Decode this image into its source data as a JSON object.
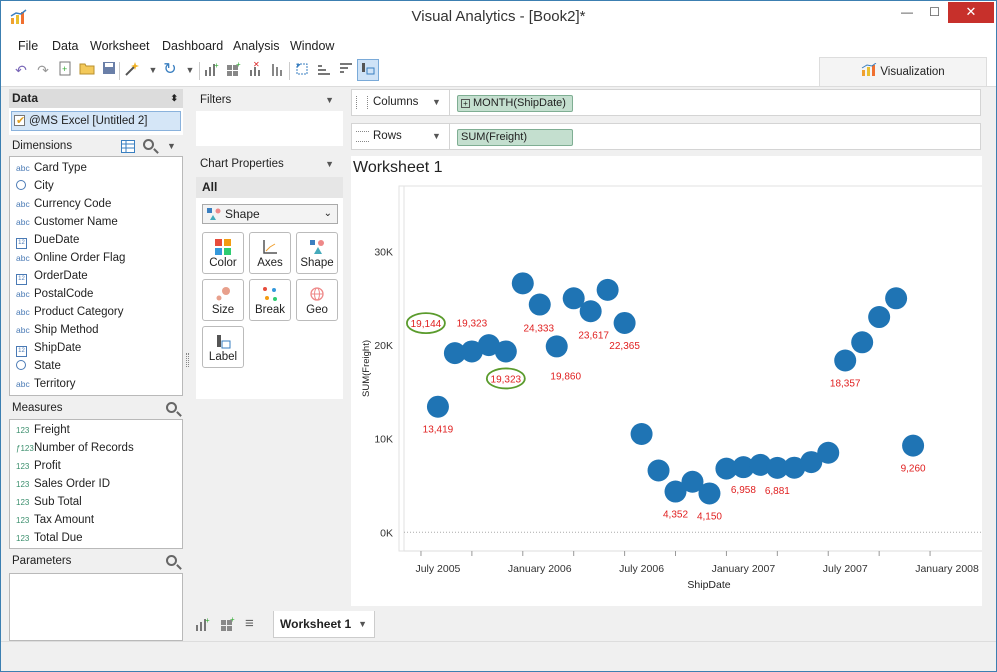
{
  "window": {
    "title": "Visual Analytics - [Book2]*",
    "min": "—",
    "max": "☐",
    "close": "✕"
  },
  "menu": [
    "File",
    "Data",
    "Worksheet",
    "Dashboard",
    "Analysis",
    "Window"
  ],
  "toolbar": {
    "visualization_tab": "Visualization"
  },
  "data_pane": {
    "title": "Data",
    "source": "@MS Excel [Untitled 2]"
  },
  "dimensions": {
    "title": "Dimensions",
    "items": [
      {
        "label": "Card Type",
        "icon": "abc"
      },
      {
        "label": "City",
        "icon": "globe-icon"
      },
      {
        "label": "Currency Code",
        "icon": "abc"
      },
      {
        "label": "Customer Name",
        "icon": "abc"
      },
      {
        "label": "DueDate",
        "icon": "calendar-icon"
      },
      {
        "label": "Online Order Flag",
        "icon": "abc"
      },
      {
        "label": "OrderDate",
        "icon": "calendar-icon"
      },
      {
        "label": "PostalCode",
        "icon": "abc"
      },
      {
        "label": "Product Category",
        "icon": "abc"
      },
      {
        "label": "Ship Method",
        "icon": "abc"
      },
      {
        "label": "ShipDate",
        "icon": "calendar-icon"
      },
      {
        "label": "State",
        "icon": "globe-icon"
      },
      {
        "label": "Territory",
        "icon": "abc"
      }
    ]
  },
  "measures": {
    "title": "Measures",
    "items": [
      {
        "label": "Freight",
        "icon": "123"
      },
      {
        "label": "Number of Records",
        "icon": "fx123"
      },
      {
        "label": "Profit",
        "icon": "123"
      },
      {
        "label": "Sales Order ID",
        "icon": "123"
      },
      {
        "label": "Sub Total",
        "icon": "123"
      },
      {
        "label": "Tax Amount",
        "icon": "123"
      },
      {
        "label": "Total Due",
        "icon": "123"
      }
    ]
  },
  "parameters": {
    "title": "Parameters"
  },
  "filters": {
    "title": "Filters"
  },
  "chart_properties": {
    "title": "Chart Properties",
    "all_tab": "All",
    "mark_type": "Shape",
    "tiles": [
      "Color",
      "Axes",
      "Shape",
      "Size",
      "Break",
      "Geo",
      "Label"
    ]
  },
  "shelves": {
    "columns_label": "Columns",
    "columns_pill": "MONTH(ShipDate)",
    "rows_label": "Rows",
    "rows_pill": "SUM(Freight)"
  },
  "worksheet": {
    "title": "Worksheet 1",
    "tab": "Worksheet 1"
  },
  "chart_data": {
    "type": "scatter",
    "xlabel": "ShipDate",
    "ylabel": "SUM(Freight)",
    "x_ticks": [
      "July 2005",
      "January 2006",
      "July 2006",
      "January 2007",
      "July 2007",
      "January 2008"
    ],
    "y_ticks": [
      "0K",
      "10K",
      "20K",
      "30K"
    ],
    "ylim": [
      -2000,
      37000
    ],
    "grid": false,
    "series": [
      {
        "x": [
          "2005-07",
          "2005-08",
          "2005-09",
          "2005-10",
          "2005-11",
          "2005-12",
          "2006-01",
          "2006-02",
          "2006-03",
          "2006-04",
          "2006-05",
          "2006-06",
          "2006-07",
          "2006-08",
          "2006-09",
          "2006-10",
          "2006-11",
          "2006-12",
          "2007-01",
          "2007-02",
          "2007-03",
          "2007-04",
          "2007-05",
          "2007-06",
          "2007-07",
          "2007-08",
          "2007-09",
          "2007-10",
          "2007-11"
        ],
        "y": [
          13419,
          19144,
          19323,
          20000,
          19323,
          26600,
          24333,
          19860,
          25000,
          23617,
          25900,
          22365,
          10500,
          6600,
          4352,
          5400,
          4150,
          6800,
          6958,
          7200,
          6881,
          6900,
          7500,
          8500,
          18357,
          20300,
          23000,
          25000,
          9260
        ]
      }
    ],
    "data_labels": [
      {
        "x": "2005-07",
        "text": "13,419",
        "pos": "below"
      },
      {
        "x": "2005-08",
        "text": "19,144",
        "pos": "left",
        "circled": true
      },
      {
        "x": "2005-09",
        "text": "19,323",
        "pos": "above"
      },
      {
        "x": "2005-11",
        "text": "19,323",
        "pos": "below",
        "circled": true
      },
      {
        "x": "2006-01",
        "text": "24,333",
        "pos": "below"
      },
      {
        "x": "2006-02",
        "text": "19,860",
        "pos": "below"
      },
      {
        "x": "2006-04",
        "text": "23,617",
        "pos": "below"
      },
      {
        "x": "2006-06",
        "text": "22,365",
        "pos": "below"
      },
      {
        "x": "2006-09",
        "text": "4,352",
        "pos": "below"
      },
      {
        "x": "2006-11",
        "text": "4,150",
        "pos": "below"
      },
      {
        "x": "2007-01",
        "text": "6,958",
        "pos": "below"
      },
      {
        "x": "2007-03",
        "text": "6,881",
        "pos": "below"
      },
      {
        "x": "2007-07",
        "text": "18,357",
        "pos": "below"
      },
      {
        "x": "2007-11",
        "text": "9,260",
        "pos": "below"
      }
    ],
    "marker_color": "#1f74b4",
    "label_color": "#e02020",
    "circle_color": "#5a9b2c"
  }
}
